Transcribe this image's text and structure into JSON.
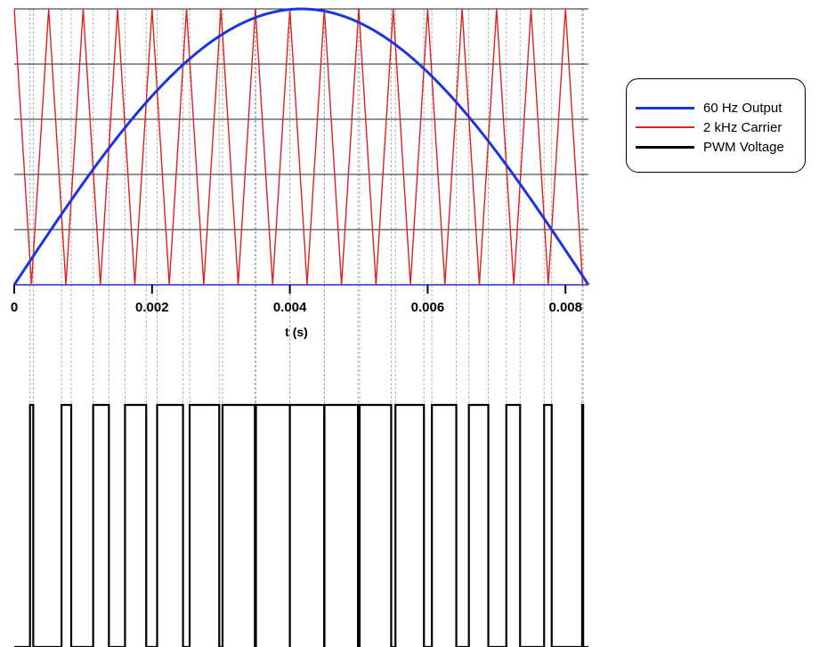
{
  "chart_data": {
    "type": "line",
    "xlabel": "t (s)",
    "x_ticks": [
      "0",
      "0.002",
      "0.004",
      "0.006",
      "0.008"
    ],
    "x_tick_values": [
      0,
      0.002,
      0.004,
      0.006,
      0.008
    ],
    "xlim": [
      0,
      0.008333
    ],
    "ylim": [
      0,
      1
    ],
    "grid": "horizontal",
    "legend_position": "right",
    "colors": {
      "output": "#1a34e0",
      "carrier": "#e0201e",
      "pwm": "#000000",
      "grid": "#222222",
      "guide": "#aaaaaa"
    },
    "series": [
      {
        "name": "60 Hz Output",
        "function": "sin(2*pi*60*t)",
        "frequency_hz": 60,
        "amplitude": 1
      },
      {
        "name": "2 kHz Carrier",
        "function": "triangle",
        "frequency_hz": 2000,
        "range": [
          0,
          1
        ]
      },
      {
        "name": "PWM Voltage",
        "function": "1 when 60 Hz Output > 2 kHz Carrier, else 0",
        "range": [
          0,
          1
        ]
      }
    ]
  },
  "legend": {
    "items": [
      {
        "label": "60 Hz Output",
        "color": "#1a34e0"
      },
      {
        "label": "2 kHz Carrier",
        "color": "#e0201e"
      },
      {
        "label": "PWM Voltage",
        "color": "#000000"
      }
    ]
  }
}
